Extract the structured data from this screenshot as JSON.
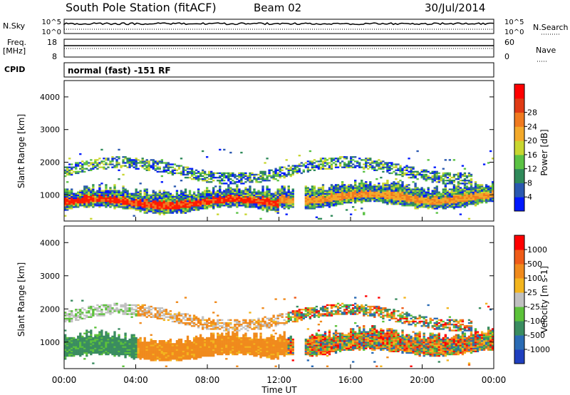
{
  "header": {
    "station": "South Pole Station (fitACF)",
    "beam": "Beam 02",
    "date": "30/Jul/2014"
  },
  "strip_panels": {
    "nsky_label": "N.Sky",
    "nsky_ticks": [
      "10^5",
      "10^0"
    ],
    "nsearch_label": "N.Search",
    "nsearch_ticks": [
      "10^5",
      "10^0"
    ],
    "freq_label": "Freq.",
    "freq_unit": "[MHz]",
    "freq_ticks": [
      "18",
      "8"
    ],
    "nave_label": "Nave",
    "nave_ticks": [
      "60",
      "0"
    ],
    "cpid_label": "CPID",
    "cpid_text": "normal (fast) -151 RF"
  },
  "chart_data": [
    {
      "type": "heatmap",
      "name": "power-panel",
      "ylabel": "Slant Range [km]",
      "ylim": [
        200,
        4500
      ],
      "yticks": [
        1000,
        2000,
        3000,
        4000
      ],
      "colorbar": {
        "label": "Power [dB]",
        "ticks": [
          "4",
          "8",
          "12",
          "16",
          "20",
          "24",
          "28"
        ],
        "colors": [
          "#0019ff",
          "#2a58b0",
          "#2f8a5a",
          "#5bc244",
          "#c8d630",
          "#f3a92a",
          "#f07a1f",
          "#e03a14",
          "#ff0000"
        ]
      }
    },
    {
      "type": "heatmap",
      "name": "velocity-panel",
      "ylabel": "Slant Range [km]",
      "ylim": [
        200,
        4500
      ],
      "yticks": [
        1000,
        2000,
        3000,
        4000
      ],
      "xlabel": "Time UT",
      "xticks": [
        "00:00",
        "04:00",
        "08:00",
        "12:00",
        "16:00",
        "20:00",
        "00:00"
      ],
      "colorbar": {
        "label": "Velocity [m s-1]",
        "ticks": [
          "1000",
          "500",
          "100",
          "25",
          "-25",
          "-100",
          "-500",
          "-1000"
        ],
        "colors": [
          "#1f3fbf",
          "#2a6bb4",
          "#3a8c60",
          "#5cc23a",
          "#c0c0c0",
          "#f3b51e",
          "#f08a1c",
          "#ef5b18",
          "#ff0000"
        ]
      }
    }
  ]
}
